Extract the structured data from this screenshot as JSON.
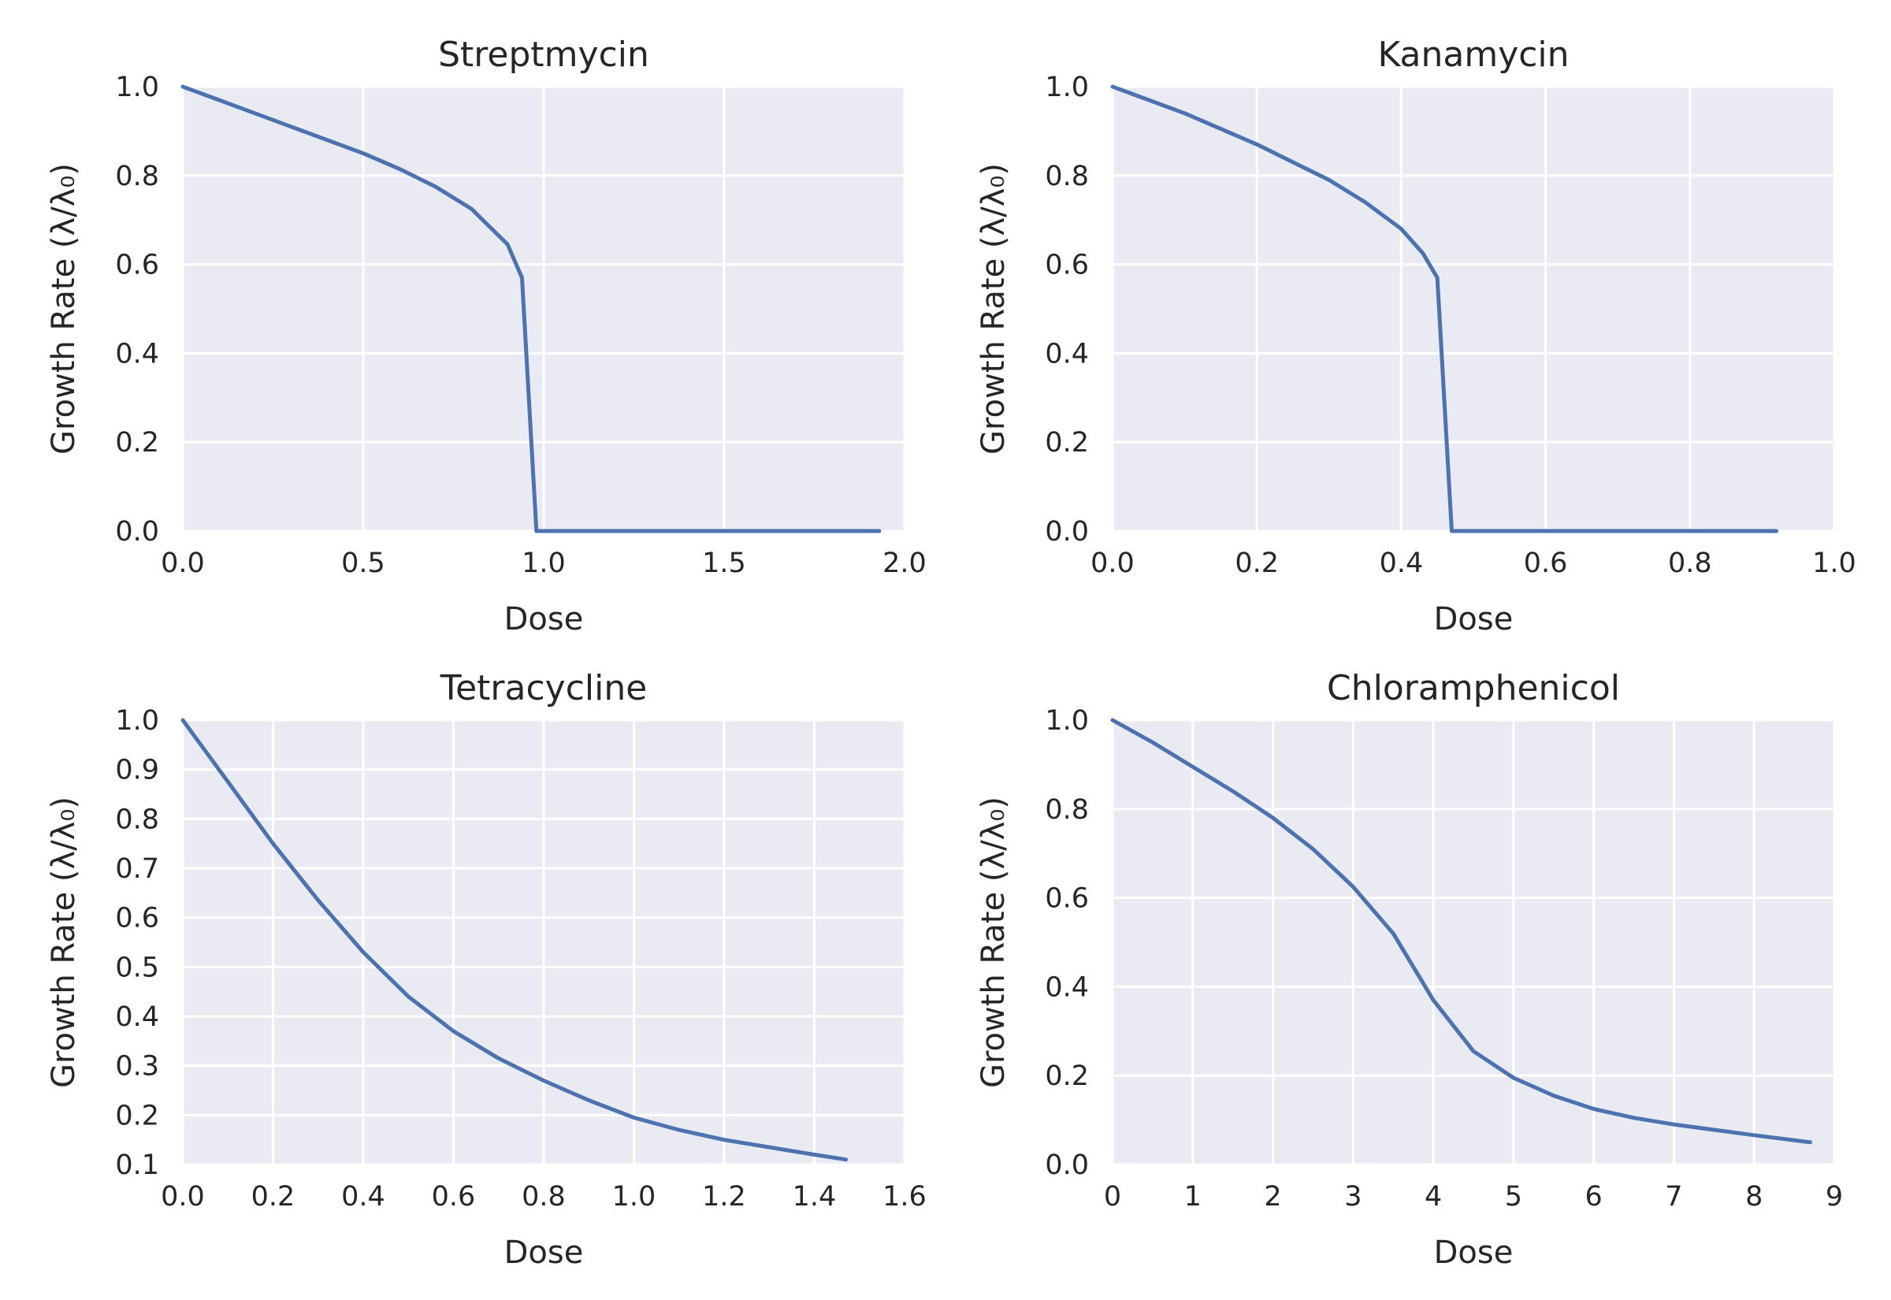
{
  "chart_data": [
    {
      "type": "line",
      "title": "Streptmycin",
      "xlabel": "Dose",
      "ylabel": "Growth Rate (λ/λ₀)",
      "xlim": [
        0,
        2.0
      ],
      "ylim": [
        0,
        1.0
      ],
      "xticks": [
        "0.0",
        "0.5",
        "1.0",
        "1.5",
        "2.0"
      ],
      "yticks": [
        "0.0",
        "0.2",
        "0.4",
        "0.6",
        "0.8",
        "1.0"
      ],
      "grid": true,
      "series": [
        {
          "x": [
            0,
            0.1,
            0.2,
            0.3,
            0.4,
            0.5,
            0.6,
            0.7,
            0.8,
            0.9,
            0.94,
            0.98,
            1.2,
            1.5,
            1.93
          ],
          "y": [
            1.0,
            0.97,
            0.94,
            0.91,
            0.88,
            0.85,
            0.815,
            0.775,
            0.725,
            0.645,
            0.57,
            0.0,
            0.0,
            0.0,
            0.0
          ]
        }
      ]
    },
    {
      "type": "line",
      "title": "Kanamycin",
      "xlabel": "Dose",
      "ylabel": "Growth Rate (λ/λ₀)",
      "xlim": [
        0,
        1.0
      ],
      "ylim": [
        0,
        1.0
      ],
      "xticks": [
        "0.0",
        "0.2",
        "0.4",
        "0.6",
        "0.8",
        "1.0"
      ],
      "yticks": [
        "0.0",
        "0.2",
        "0.4",
        "0.6",
        "0.8",
        "1.0"
      ],
      "grid": true,
      "series": [
        {
          "x": [
            0,
            0.05,
            0.1,
            0.15,
            0.2,
            0.25,
            0.3,
            0.35,
            0.4,
            0.43,
            0.45,
            0.47,
            0.6,
            0.8,
            0.92
          ],
          "y": [
            1.0,
            0.97,
            0.94,
            0.905,
            0.87,
            0.83,
            0.79,
            0.74,
            0.68,
            0.625,
            0.57,
            0.0,
            0.0,
            0.0,
            0.0
          ]
        }
      ]
    },
    {
      "type": "line",
      "title": "Tetracycline",
      "xlabel": "Dose",
      "ylabel": "Growth Rate (λ/λ₀)",
      "xlim": [
        0,
        1.6
      ],
      "ylim": [
        0.1,
        1.0
      ],
      "xticks": [
        "0.0",
        "0.2",
        "0.4",
        "0.6",
        "0.8",
        "1.0",
        "1.2",
        "1.4",
        "1.6"
      ],
      "yticks": [
        "0.1",
        "0.2",
        "0.3",
        "0.4",
        "0.5",
        "0.6",
        "0.7",
        "0.8",
        "0.9",
        "1.0"
      ],
      "grid": true,
      "series": [
        {
          "x": [
            0,
            0.1,
            0.2,
            0.3,
            0.4,
            0.5,
            0.6,
            0.7,
            0.8,
            0.9,
            1.0,
            1.1,
            1.2,
            1.3,
            1.4,
            1.47
          ],
          "y": [
            1.0,
            0.875,
            0.75,
            0.635,
            0.53,
            0.44,
            0.37,
            0.315,
            0.27,
            0.23,
            0.195,
            0.17,
            0.15,
            0.135,
            0.12,
            0.11
          ]
        }
      ]
    },
    {
      "type": "line",
      "title": "Chloramphenicol",
      "xlabel": "Dose",
      "ylabel": "Growth Rate (λ/λ₀)",
      "xlim": [
        0,
        9
      ],
      "ylim": [
        0,
        1.0
      ],
      "xticks": [
        "0",
        "1",
        "2",
        "3",
        "4",
        "5",
        "6",
        "7",
        "8",
        "9"
      ],
      "yticks": [
        "0.0",
        "0.2",
        "0.4",
        "0.6",
        "0.8",
        "1.0"
      ],
      "grid": true,
      "series": [
        {
          "x": [
            0,
            0.5,
            1.0,
            1.5,
            2.0,
            2.5,
            3.0,
            3.5,
            4.0,
            4.5,
            5.0,
            5.5,
            6.0,
            6.5,
            7.0,
            7.5,
            8.0,
            8.7
          ],
          "y": [
            1.0,
            0.95,
            0.895,
            0.84,
            0.78,
            0.71,
            0.625,
            0.52,
            0.37,
            0.255,
            0.195,
            0.155,
            0.125,
            0.105,
            0.09,
            0.078,
            0.066,
            0.05
          ]
        }
      ]
    }
  ]
}
